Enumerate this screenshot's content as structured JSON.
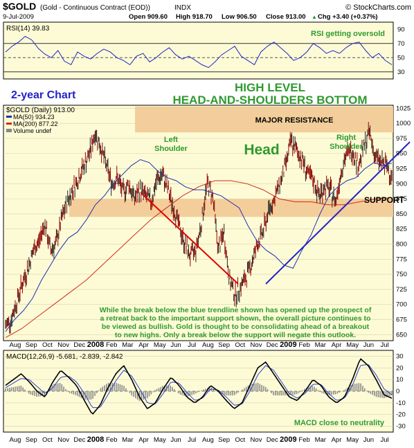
{
  "header": {
    "symbol": "$GOLD",
    "description": "(Gold - Continuous Contract (EOD))",
    "exchange": "INDX",
    "brand": "© StockCharts.com",
    "date": "9-Jul-2009",
    "open": "Open 909.60",
    "high": "High 918.70",
    "low": "Low 906.50",
    "close": "Close 913.00",
    "change": "Chg +3.40 (+0.37%)",
    "change_arrow": "▲"
  },
  "colors": {
    "panel_bg": "#fdfbd6",
    "price_bar": "#8b0000",
    "ma50": "#1f2fb0",
    "ma200": "#d42a1a",
    "resistance_band": "#f3c994",
    "annotation_green": "#2f9a2f",
    "annotation_blue": "#2323c8",
    "macd_line": "#000000",
    "signal_line": "#2a3fd0",
    "histogram": "#8a8a8a"
  },
  "chart_data": [
    {
      "type": "line",
      "panel": "rsi",
      "label": "RSI(14) 39.83",
      "ylim": [
        20,
        100
      ],
      "ticks": [
        "90",
        "70",
        "50",
        "30"
      ],
      "series": [
        {
          "name": "RSI(14)",
          "values": [
            58,
            66,
            72,
            80,
            75,
            63,
            55,
            50,
            60,
            45,
            40,
            58,
            52,
            48,
            56,
            62,
            58,
            50,
            46,
            40,
            52,
            56,
            44,
            50,
            58,
            64,
            54,
            48,
            52,
            46,
            40,
            36,
            44,
            54,
            60,
            66,
            52,
            46,
            40,
            58,
            66,
            72,
            64,
            56,
            46,
            50,
            58,
            70,
            64,
            56,
            60,
            56,
            64,
            70,
            72,
            60,
            50,
            56,
            46,
            40
          ]
        }
      ],
      "annotation": "RSI getting oversold"
    },
    {
      "type": "line",
      "panel": "price",
      "legend": [
        "$GOLD (Daily) 913.00",
        "MA(50) 934.23",
        "MA(200) 877.22",
        "Volume undef"
      ],
      "ylim": [
        640,
        1030
      ],
      "y_ticks": [
        "1025",
        "1000",
        "975",
        "950",
        "925",
        "900",
        "875",
        "850",
        "825",
        "800",
        "775",
        "750",
        "725",
        "700",
        "675",
        "650"
      ],
      "x_labels": [
        "Aug",
        "Sep",
        "Oct",
        "Nov",
        "Dec",
        "2008",
        "Feb",
        "Mar",
        "Apr",
        "May",
        "Jun",
        "Jul",
        "Aug",
        "Sep",
        "Oct",
        "Nov",
        "Dec",
        "2009",
        "Feb",
        "Mar",
        "Apr",
        "May",
        "Jun",
        "Jul"
      ],
      "series": [
        {
          "name": "$GOLD (Daily)",
          "values": [
            665,
            675,
            705,
            735,
            760,
            790,
            805,
            835,
            790,
            800,
            840,
            870,
            890,
            910,
            930,
            950,
            985,
            960,
            930,
            900,
            910,
            885,
            900,
            875,
            890,
            880,
            870,
            905,
            915,
            890,
            860,
            830,
            800,
            780,
            790,
            835,
            900,
            880,
            790,
            820,
            740,
            715,
            730,
            745,
            770,
            800,
            820,
            855,
            875,
            900,
            930,
            970,
            955,
            940,
            915,
            905,
            880,
            895,
            890,
            870,
            925,
            950,
            955,
            930,
            960,
            985,
            945,
            935,
            930,
            913
          ]
        },
        {
          "name": "MA(50)",
          "values": [
            655,
            675,
            690,
            710,
            740,
            765,
            790,
            810,
            820,
            840,
            865,
            880,
            900,
            915,
            930,
            940,
            935,
            920,
            910,
            905,
            895,
            890,
            890,
            885,
            880,
            870,
            860,
            830,
            805,
            790,
            780,
            765,
            760,
            790,
            815,
            850,
            880,
            895,
            905,
            910,
            925,
            935,
            930,
            934
          ]
        },
        {
          "name": "MA(200)",
          "values": [
            645,
            660,
            680,
            700,
            720,
            740,
            765,
            790,
            815,
            840,
            860,
            880,
            895,
            905,
            905,
            900,
            890,
            875,
            870,
            870,
            865,
            865,
            870,
            875,
            877
          ]
        }
      ],
      "annotations": [
        "2-year Chart",
        "HIGH LEVEL",
        "HEAD-AND-SHOULDERS BOTTOM",
        "MAJOR RESISTANCE",
        "Left",
        "Shoulder",
        "Head",
        "Right",
        "Shoulder",
        "SUPPORT"
      ],
      "resistance_zone": [
        985,
        1028
      ],
      "support_zone": [
        845,
        875
      ],
      "note_lines": [
        "While the break below the blue trendline shown has opened up the prospect of",
        "a retreat back to the important support shown, the overall picture continues to",
        "be viewed as bullish. Gold is thought to be consolidating ahead of a breakout",
        "to new highs. Only a break below the support will negate this outlook."
      ]
    },
    {
      "type": "line",
      "panel": "macd",
      "label": "MACD(12,26,9) -5.681, -2.839, -2.842",
      "ylim": [
        -35,
        35
      ],
      "ticks": [
        "30",
        "20",
        "10",
        "0",
        "-10",
        "-20",
        "-30"
      ],
      "series": [
        {
          "name": "MACD",
          "values": [
            5,
            10,
            15,
            8,
            0,
            -5,
            8,
            18,
            12,
            5,
            -8,
            -20,
            -12,
            3,
            15,
            22,
            10,
            -5,
            -15,
            -10,
            2,
            12,
            5,
            -5,
            -10,
            -5,
            5,
            0,
            -8,
            -15,
            -10,
            5,
            20,
            25,
            15,
            5,
            -5,
            -8,
            0,
            10,
            5,
            -5,
            -10,
            -5,
            10,
            28,
            22,
            10,
            -3,
            -6
          ]
        },
        {
          "name": "Signal",
          "values": [
            3,
            7,
            11,
            10,
            4,
            -2,
            3,
            12,
            13,
            8,
            -2,
            -14,
            -14,
            -3,
            9,
            18,
            13,
            2,
            -10,
            -11,
            -2,
            8,
            7,
            -1,
            -8,
            -6,
            2,
            1,
            -5,
            -12,
            -11,
            0,
            14,
            22,
            18,
            8,
            -2,
            -6,
            -2,
            6,
            6,
            -2,
            -8,
            -6,
            5,
            22,
            23,
            14,
            2,
            -3
          ]
        }
      ],
      "annotation": "MACD close to neutrality"
    }
  ]
}
